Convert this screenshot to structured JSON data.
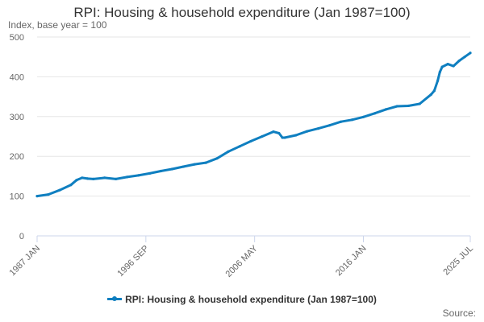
{
  "chart_data": {
    "type": "line",
    "title": "RPI: Housing & household expenditure (Jan 1987=100)",
    "ylabel": "Index, base year = 100",
    "xlabel": "",
    "ylim": [
      0,
      500
    ],
    "yticks": [
      0,
      100,
      200,
      300,
      400,
      500
    ],
    "xlim": [
      1987.0,
      2025.5
    ],
    "xticks": [
      {
        "label": "1987 JAN",
        "x": 1987.0
      },
      {
        "label": "1996 SEP",
        "x": 1996.667
      },
      {
        "label": "2006 MAY",
        "x": 2006.333
      },
      {
        "label": "2016 JAN",
        "x": 2016.0
      },
      {
        "label": "2025 JUL",
        "x": 2025.5
      }
    ],
    "grid": true,
    "legend_position": "bottom",
    "series": [
      {
        "name": "RPI: Housing & household expenditure (Jan 1987=100)",
        "color": "#0f7fc0",
        "x": [
          1987.0,
          1988.0,
          1989.0,
          1990.0,
          1990.5,
          1991.0,
          1991.5,
          1992.0,
          1993.0,
          1994.0,
          1995.0,
          1996.0,
          1997.0,
          1998.0,
          1999.0,
          2000.0,
          2001.0,
          2002.0,
          2003.0,
          2004.0,
          2005.0,
          2006.0,
          2007.0,
          2008.0,
          2008.5,
          2008.8,
          2009.0,
          2010.0,
          2011.0,
          2012.0,
          2013.0,
          2014.0,
          2015.0,
          2016.0,
          2017.0,
          2018.0,
          2019.0,
          2020.0,
          2021.0,
          2022.0,
          2022.3,
          2022.6,
          2022.8,
          2023.0,
          2023.5,
          2024.0,
          2024.5,
          2025.0,
          2025.5
        ],
        "values": [
          100,
          104,
          115,
          128,
          140,
          146,
          144,
          143,
          146,
          143,
          148,
          152,
          157,
          163,
          168,
          174,
          180,
          184,
          195,
          212,
          225,
          238,
          250,
          262,
          258,
          247,
          247,
          253,
          263,
          270,
          278,
          287,
          292,
          299,
          308,
          318,
          326,
          327,
          332,
          355,
          365,
          390,
          412,
          425,
          432,
          427,
          440,
          450,
          460
        ]
      }
    ]
  },
  "source_label": "Source:"
}
